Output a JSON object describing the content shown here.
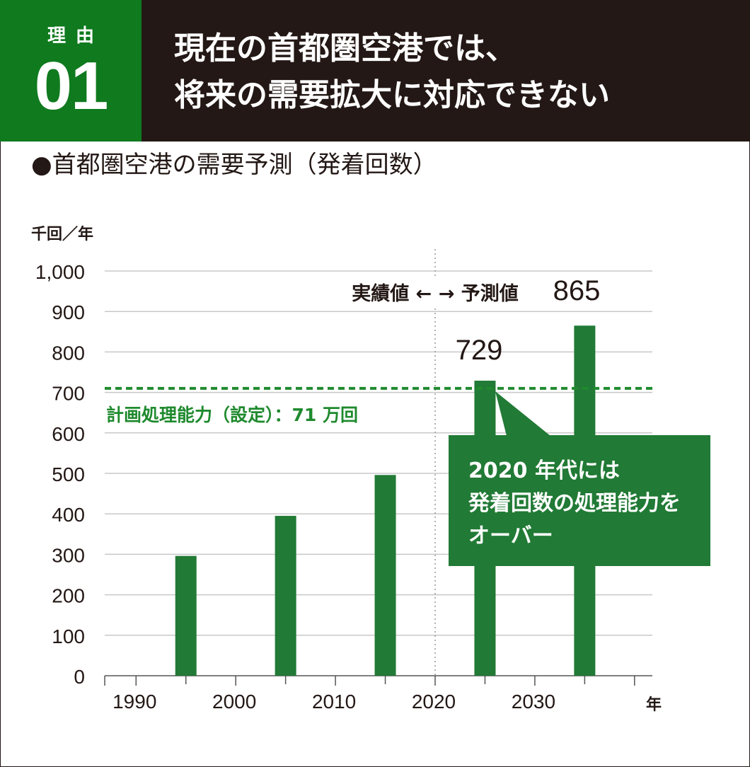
{
  "header": {
    "badge_label": "理由",
    "badge_number": "01",
    "headline_line1": "現在の首都圏空港では、",
    "headline_line2": "将来の需要拡大に対応できない"
  },
  "chart_heading": "●首都圏空港の需要予測（発着回数）",
  "colors": {
    "header_bg": "#231815",
    "badge_green": "#0f7a1e",
    "bar_green": "#217a35",
    "capacity_line": "#1f8a2e",
    "gridline": "#c8c8c8"
  },
  "chart_data": {
    "type": "bar",
    "title": "●首都圏空港の需要予測（発着回数）",
    "ylabel": "千回／年",
    "xlabel": "年",
    "ylim": [
      0,
      1000
    ],
    "yticks": [
      0,
      100,
      200,
      300,
      400,
      500,
      600,
      700,
      800,
      900,
      1000
    ],
    "ytick_labels": [
      "0",
      "100",
      "200",
      "300",
      "400",
      "500",
      "600",
      "700",
      "800",
      "900",
      "1,000"
    ],
    "xticks": [
      1990,
      2000,
      2010,
      2020,
      2030
    ],
    "xlim": [
      1987,
      2042
    ],
    "grid": true,
    "bars": [
      {
        "x": 1995,
        "value": 296
      },
      {
        "x": 2005,
        "value": 395
      },
      {
        "x": 2015,
        "value": 496
      },
      {
        "x": 2025,
        "value": 729,
        "label": "729"
      },
      {
        "x": 2035,
        "value": 865,
        "label": "865"
      }
    ],
    "divider_x": 2020,
    "divider_label": "実績値 ← → 予測値",
    "capacity_line": {
      "value": 710,
      "label": "計画処理能力（設定）：71 万回"
    },
    "annotation": {
      "line1": "2020 年代には",
      "line2": "発着回数の処理能力を",
      "line3": "オーバー"
    }
  }
}
